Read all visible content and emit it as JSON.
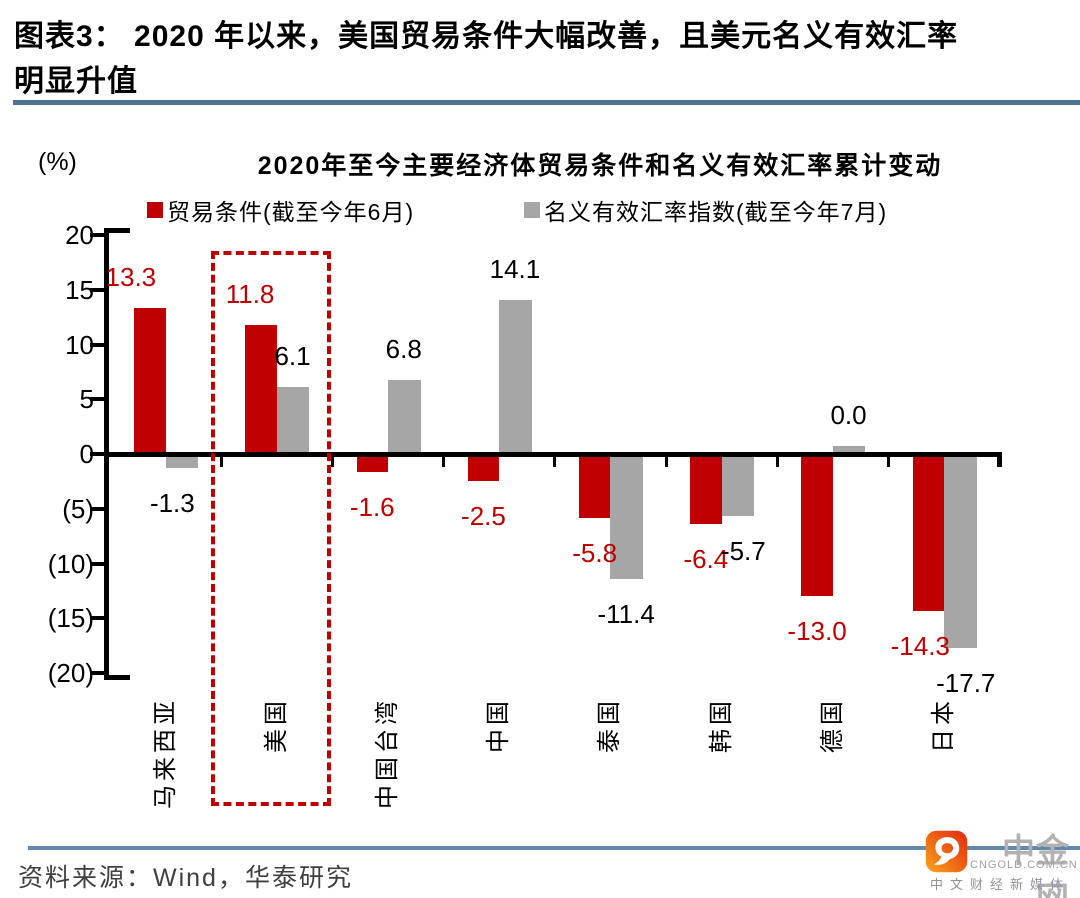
{
  "header": {
    "figure_label_line1": "图表3：  2020 年以来，美国贸易条件大幅改善，且美元名义有效汇率",
    "figure_label_line2": "明显升值"
  },
  "chart_data": {
    "type": "bar",
    "title": "2020年至今主要经济体贸易条件和名义有效汇率累计变动",
    "unit_label": "(%)",
    "categories": [
      "马来西亚",
      "美国",
      "中国台湾",
      "中国",
      "泰国",
      "韩国",
      "德国",
      "日本"
    ],
    "series": [
      {
        "name": "贸易条件(截至今年6月)",
        "color": "#c00000",
        "label_color": "#c00000",
        "values": [
          13.3,
          11.8,
          -1.6,
          -2.5,
          -5.8,
          -6.4,
          -13.0,
          -14.3
        ]
      },
      {
        "name": "名义有效汇率指数(截至今年7月)",
        "color": "#a6a6a6",
        "label_color": "#000000",
        "values": [
          -1.3,
          6.1,
          6.8,
          14.1,
          -11.4,
          -5.7,
          0.0,
          -17.7
        ]
      }
    ],
    "ylim": [
      -20,
      20
    ],
    "yticks": [
      20,
      15,
      10,
      5,
      0,
      -5,
      -10,
      -15,
      -20
    ],
    "ytick_labels": [
      "20",
      "15",
      "10",
      "5",
      "0",
      "(5)",
      "(10)",
      "(15)",
      "(20)"
    ],
    "highlight_category": "美国",
    "legend_position": "top",
    "grid": false
  },
  "footer": {
    "source": "资料来源：Wind，华泰研究",
    "logo": {
      "name": "中金网",
      "domain": "CNGOLD.COM.CN",
      "tagline": "中文财经新媒体"
    }
  },
  "colors": {
    "bar_red": "#c00000",
    "bar_gray": "#a6a6a6",
    "highlight_border": "#c00000",
    "title_rule": "#4d7298",
    "footer_rule": "#6388ad"
  }
}
